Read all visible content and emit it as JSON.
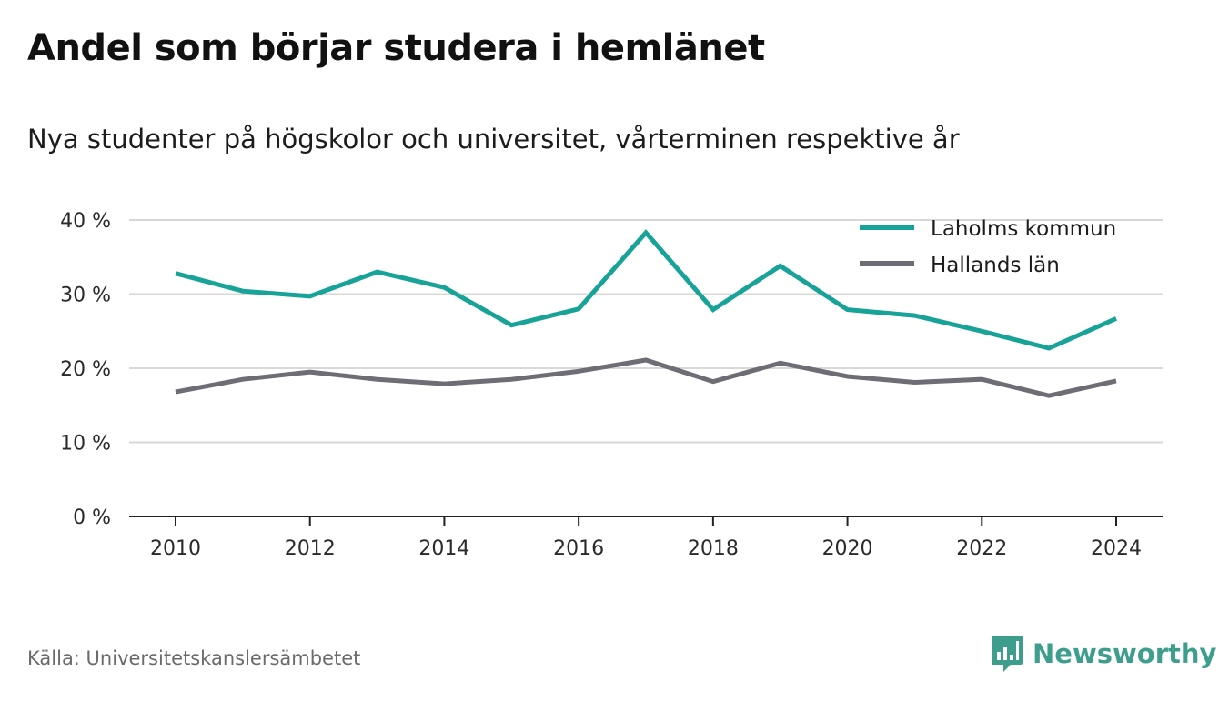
{
  "header": {
    "title": "Andel som börjar studera i hemlänet",
    "subtitle": "Nya studenter på högskolor och universitet, vårterminen respektive år"
  },
  "footer": {
    "source": "Källa: Universitetskanslersämbetet",
    "brand": "Newsworthy",
    "brand_icon": "newsworthy-chart-bubble-icon"
  },
  "colors": {
    "laholm": "#17a398",
    "halland": "#6e6d75",
    "grid": "#d8d8d8",
    "axis": "#222222",
    "brand": "#3e9e8e"
  },
  "chart_data": {
    "type": "line",
    "x": [
      2010,
      2011,
      2012,
      2013,
      2014,
      2015,
      2016,
      2017,
      2018,
      2019,
      2020,
      2021,
      2022,
      2023,
      2024
    ],
    "x_ticks": [
      2010,
      2012,
      2014,
      2016,
      2018,
      2020,
      2022,
      2024
    ],
    "y_ticks": [
      0,
      10,
      20,
      30,
      40
    ],
    "y_tick_labels": [
      "0 %",
      "10 %",
      "20 %",
      "30 %",
      "40 %"
    ],
    "ylim": [
      0,
      40
    ],
    "grid": true,
    "legend_position": "top-right",
    "series": [
      {
        "name": "Laholms kommun",
        "color": "#17a398",
        "values": [
          32.8,
          30.4,
          29.7,
          33.0,
          30.9,
          25.8,
          28.0,
          38.3,
          27.9,
          33.8,
          27.9,
          27.1,
          25.0,
          22.7,
          26.7
        ]
      },
      {
        "name": "Hallands län",
        "color": "#6e6d75",
        "values": [
          16.8,
          18.5,
          19.5,
          18.5,
          17.9,
          18.5,
          19.6,
          21.1,
          18.2,
          20.7,
          18.9,
          18.1,
          18.5,
          16.3,
          18.3
        ]
      }
    ]
  }
}
